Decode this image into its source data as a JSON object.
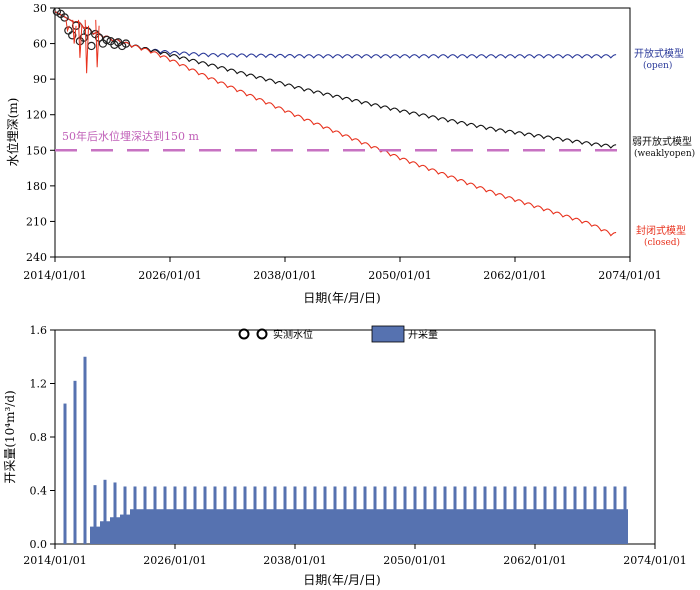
{
  "top_chart": {
    "ylabel": "水位埋深(m)",
    "xlabel": "日期(年/月/日)",
    "x_ticks": [
      "2014/01/01",
      "2026/01/01",
      "2038/01/01",
      "2050/01/01",
      "2062/01/01",
      "2074/01/01"
    ],
    "y_ticks": [
      "30",
      "60",
      "90",
      "120",
      "150",
      "180",
      "210",
      "240"
    ],
    "threshold_label": "50年后水位埋深达到150 m",
    "series": [
      {
        "key": "open",
        "name": "开放式模型",
        "name_en": "(open)",
        "color": "#2b3a9a"
      },
      {
        "key": "weak",
        "name": "弱开放式模型",
        "name_en": "(weaklyopen)",
        "color": "#111111"
      },
      {
        "key": "closed",
        "name": "封闭式模型",
        "name_en": "(closed)",
        "color": "#e8321e"
      }
    ],
    "threshold_color": "#c772c2"
  },
  "bottom_chart": {
    "ylabel": "开采量(10⁴m³/d)",
    "xlabel": "日期(年/月/日)",
    "x_ticks": [
      "2014/01/01",
      "2026/01/01",
      "2038/01/01",
      "2050/01/01",
      "2062/01/01",
      "2074/01/01"
    ],
    "y_ticks": [
      "0.0",
      "0.4",
      "0.8",
      "1.2",
      "1.6"
    ],
    "legend_observed": "实测水位",
    "legend_pumping": "开采量",
    "bar_color": "#5672b0"
  },
  "chart_data": [
    {
      "type": "line",
      "xlabel": "日期(年/月/日)",
      "ylabel": "水位埋深(m)",
      "xlim": [
        2014,
        2074
      ],
      "ylim": [
        30,
        240
      ],
      "y_inverted": true,
      "series": [
        {
          "name": "开放式模型 (open)",
          "x": [
            2014,
            2016,
            2018,
            2020,
            2022,
            2024,
            2026,
            2030,
            2040,
            2050,
            2060,
            2070,
            2072
          ],
          "y": [
            33,
            42,
            52,
            58,
            63,
            67,
            69,
            71,
            72,
            72,
            72,
            72,
            72
          ]
        },
        {
          "name": "弱开放式模型 (weaklyopen)",
          "x": [
            2014,
            2016,
            2018,
            2020,
            2022,
            2024,
            2026,
            2030,
            2040,
            2050,
            2060,
            2070,
            2072
          ],
          "y": [
            33,
            42,
            52,
            58,
            63,
            67,
            71,
            79,
            100,
            118,
            134,
            146,
            148
          ]
        },
        {
          "name": "封闭式模型 (closed)",
          "x": [
            2014,
            2016,
            2018,
            2020,
            2022,
            2024,
            2026,
            2030,
            2040,
            2050,
            2060,
            2070,
            2072
          ],
          "y": [
            33,
            42,
            52,
            58,
            63,
            68,
            75,
            90,
            125,
            158,
            188,
            214,
            222
          ]
        }
      ],
      "threshold": {
        "y": 150,
        "label": "50年后水位埋深达到150 m"
      },
      "observed_x": [
        2014.2,
        2014.6,
        2015.0,
        2015.4,
        2015.8,
        2016.2,
        2016.6,
        2017.0,
        2017.4,
        2017.8,
        2018.2,
        2018.6,
        2019.0,
        2019.4,
        2019.8,
        2020.2,
        2020.6,
        2021.0,
        2021.4
      ],
      "observed_y": [
        33,
        35,
        38,
        49,
        53,
        45,
        58,
        55,
        50,
        62,
        52,
        55,
        60,
        57,
        58,
        61,
        59,
        62,
        60
      ]
    },
    {
      "type": "bar",
      "xlabel": "日期(年/月/日)",
      "ylabel": "开采量(10⁴m³/d)",
      "xlim": [
        2014,
        2074
      ],
      "ylim": [
        0,
        1.6
      ],
      "series": [
        {
          "name": "开采量",
          "peak_years": [
            2015,
            2016,
            2017,
            2018,
            2019,
            2020,
            2021,
            2022,
            2023,
            2024,
            2025,
            2026,
            2027,
            2028,
            2029,
            2030,
            2031,
            2032,
            2033,
            2034,
            2035,
            2036,
            2037,
            2038,
            2039,
            2040,
            2041,
            2042,
            2043,
            2044,
            2045,
            2046,
            2047,
            2048,
            2049,
            2050,
            2051,
            2052,
            2053,
            2054,
            2055,
            2056,
            2057,
            2058,
            2059,
            2060,
            2061,
            2062,
            2063,
            2064,
            2065,
            2066,
            2067,
            2068,
            2069,
            2070,
            2071
          ],
          "peak_values": [
            1.05,
            1.22,
            1.4,
            0.44,
            0.48,
            0.46,
            0.43,
            0.43,
            0.43,
            0.43,
            0.43,
            0.43,
            0.43,
            0.43,
            0.43,
            0.43,
            0.43,
            0.43,
            0.43,
            0.43,
            0.43,
            0.43,
            0.43,
            0.43,
            0.43,
            0.43,
            0.43,
            0.43,
            0.43,
            0.43,
            0.43,
            0.43,
            0.43,
            0.43,
            0.43,
            0.43,
            0.43,
            0.43,
            0.43,
            0.43,
            0.43,
            0.43,
            0.43,
            0.43,
            0.43,
            0.43,
            0.43,
            0.43,
            0.43,
            0.43,
            0.43,
            0.43,
            0.43,
            0.43,
            0.43,
            0.43,
            0.43
          ],
          "base_value": 0.26
        }
      ]
    }
  ]
}
